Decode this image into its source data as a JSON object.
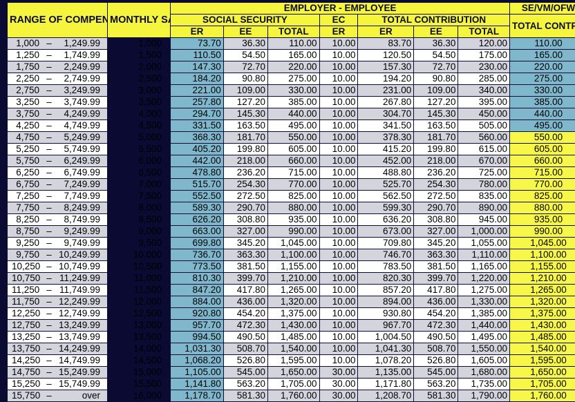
{
  "header": {
    "range": "RANGE OF COMPENSATION",
    "msc": "MONTHLY SALARY CREDIT*",
    "employer_employee": "EMPLOYER - EMPLOYEE",
    "social_security": "SOCIAL SECURITY",
    "ec": "EC",
    "total_contribution": "TOTAL CONTRIBUTION",
    "se": "SE/VM/OFW",
    "se_total": "TOTAL CONTRIBUTION",
    "er": "ER",
    "ee": "EE",
    "total": "TOTAL"
  },
  "rows": [
    {
      "lo": "1,000",
      "dash": "–",
      "hi": "1,249.99",
      "msc": "1,000",
      "ss_er": "73.70",
      "ss_ee": "36.30",
      "ss_total": "110.00",
      "ec_er": "10.00",
      "tc_er": "83.70",
      "tc_ee": "36.30",
      "tc_total": "120.00",
      "se_total": "110.00"
    },
    {
      "lo": "1,250",
      "dash": "–",
      "hi": "1,749.99",
      "msc": "1,500",
      "ss_er": "110.50",
      "ss_ee": "54.50",
      "ss_total": "165.00",
      "ec_er": "10.00",
      "tc_er": "120.50",
      "tc_ee": "54.50",
      "tc_total": "175.00",
      "se_total": "165.00"
    },
    {
      "lo": "1,750",
      "dash": "–",
      "hi": "2,249.99",
      "msc": "2,000",
      "ss_er": "147.30",
      "ss_ee": "72.70",
      "ss_total": "220.00",
      "ec_er": "10.00",
      "tc_er": "157.30",
      "tc_ee": "72.70",
      "tc_total": "230.00",
      "se_total": "220.00"
    },
    {
      "lo": "2,250",
      "dash": "–",
      "hi": "2,749.99",
      "msc": "2,500",
      "ss_er": "184.20",
      "ss_ee": "90.80",
      "ss_total": "275.00",
      "ec_er": "10.00",
      "tc_er": "194.20",
      "tc_ee": "90.80",
      "tc_total": "285.00",
      "se_total": "275.00"
    },
    {
      "lo": "2,750",
      "dash": "–",
      "hi": "3,249.99",
      "msc": "3,000",
      "ss_er": "221.00",
      "ss_ee": "109.00",
      "ss_total": "330.00",
      "ec_er": "10.00",
      "tc_er": "231.00",
      "tc_ee": "109.00",
      "tc_total": "340.00",
      "se_total": "330.00"
    },
    {
      "lo": "3,250",
      "dash": "–",
      "hi": "3,749.99",
      "msc": "3,500",
      "ss_er": "257.80",
      "ss_ee": "127.20",
      "ss_total": "385.00",
      "ec_er": "10.00",
      "tc_er": "267.80",
      "tc_ee": "127.20",
      "tc_total": "395.00",
      "se_total": "385.00"
    },
    {
      "lo": "3,750",
      "dash": "–",
      "hi": "4,249.99",
      "msc": "4,000",
      "ss_er": "294.70",
      "ss_ee": "145.30",
      "ss_total": "440.00",
      "ec_er": "10.00",
      "tc_er": "304.70",
      "tc_ee": "145.30",
      "tc_total": "450.00",
      "se_total": "440.00"
    },
    {
      "lo": "4,250",
      "dash": "–",
      "hi": "4,749.99",
      "msc": "4,500",
      "ss_er": "331.50",
      "ss_ee": "163.50",
      "ss_total": "495.00",
      "ec_er": "10.00",
      "tc_er": "341.50",
      "tc_ee": "163.50",
      "tc_total": "505.00",
      "se_total": "495.00"
    },
    {
      "lo": "4,750",
      "dash": "–",
      "hi": "5,249.99",
      "msc": "5,000",
      "ss_er": "368.30",
      "ss_ee": "181.70",
      "ss_total": "550.00",
      "ec_er": "10.00",
      "tc_er": "378.30",
      "tc_ee": "181.70",
      "tc_total": "560.00",
      "se_total": "550.00"
    },
    {
      "lo": "5,250",
      "dash": "–",
      "hi": "5,749.99",
      "msc": "5,500",
      "ss_er": "405.20",
      "ss_ee": "199.80",
      "ss_total": "605.00",
      "ec_er": "10.00",
      "tc_er": "415.20",
      "tc_ee": "199.80",
      "tc_total": "615.00",
      "se_total": "605.00"
    },
    {
      "lo": "5,750",
      "dash": "–",
      "hi": "6,249.99",
      "msc": "6,000",
      "ss_er": "442.00",
      "ss_ee": "218.00",
      "ss_total": "660.00",
      "ec_er": "10.00",
      "tc_er": "452.00",
      "tc_ee": "218.00",
      "tc_total": "670.00",
      "se_total": "660.00"
    },
    {
      "lo": "6,250",
      "dash": "–",
      "hi": "6,749.99",
      "msc": "6,500",
      "ss_er": "478.80",
      "ss_ee": "236.20",
      "ss_total": "715.00",
      "ec_er": "10.00",
      "tc_er": "488.80",
      "tc_ee": "236.20",
      "tc_total": "725.00",
      "se_total": "715.00"
    },
    {
      "lo": "6,750",
      "dash": "–",
      "hi": "7,249.99",
      "msc": "7,000",
      "ss_er": "515.70",
      "ss_ee": "254.30",
      "ss_total": "770.00",
      "ec_er": "10.00",
      "tc_er": "525.70",
      "tc_ee": "254.30",
      "tc_total": "780.00",
      "se_total": "770.00"
    },
    {
      "lo": "7,250",
      "dash": "–",
      "hi": "7,749.99",
      "msc": "7,500",
      "ss_er": "552.50",
      "ss_ee": "272.50",
      "ss_total": "825.00",
      "ec_er": "10.00",
      "tc_er": "562.50",
      "tc_ee": "272.50",
      "tc_total": "835.00",
      "se_total": "825.00"
    },
    {
      "lo": "7,750",
      "dash": "–",
      "hi": "8,249.99",
      "msc": "8,000",
      "ss_er": "589.30",
      "ss_ee": "290.70",
      "ss_total": "880.00",
      "ec_er": "10.00",
      "tc_er": "599.30",
      "tc_ee": "290.70",
      "tc_total": "890.00",
      "se_total": "880.00"
    },
    {
      "lo": "8,250",
      "dash": "–",
      "hi": "8,749.99",
      "msc": "8,500",
      "ss_er": "626.20",
      "ss_ee": "308.80",
      "ss_total": "935.00",
      "ec_er": "10.00",
      "tc_er": "636.20",
      "tc_ee": "308.80",
      "tc_total": "945.00",
      "se_total": "935.00"
    },
    {
      "lo": "8,750",
      "dash": "–",
      "hi": "9,249.99",
      "msc": "9,000",
      "ss_er": "663.00",
      "ss_ee": "327.00",
      "ss_total": "990.00",
      "ec_er": "10.00",
      "tc_er": "673.00",
      "tc_ee": "327.00",
      "tc_total": "1,000.00",
      "se_total": "990.00"
    },
    {
      "lo": "9,250",
      "dash": "–",
      "hi": "9,749.99",
      "msc": "9,500",
      "ss_er": "699.80",
      "ss_ee": "345.20",
      "ss_total": "1,045.00",
      "ec_er": "10.00",
      "tc_er": "709.80",
      "tc_ee": "345.20",
      "tc_total": "1,055.00",
      "se_total": "1,045.00"
    },
    {
      "lo": "9,750",
      "dash": "–",
      "hi": "10,249.99",
      "msc": "10,000",
      "ss_er": "736.70",
      "ss_ee": "363.30",
      "ss_total": "1,100.00",
      "ec_er": "10.00",
      "tc_er": "746.70",
      "tc_ee": "363.30",
      "tc_total": "1,110.00",
      "se_total": "1,100.00"
    },
    {
      "lo": "10,250",
      "dash": "–",
      "hi": "10,749.99",
      "msc": "10,500",
      "ss_er": "773.50",
      "ss_ee": "381.50",
      "ss_total": "1,155.00",
      "ec_er": "10.00",
      "tc_er": "783.50",
      "tc_ee": "381.50",
      "tc_total": "1,165.00",
      "se_total": "1,155.00"
    },
    {
      "lo": "10,750",
      "dash": "–",
      "hi": "11,249.99",
      "msc": "11,000",
      "ss_er": "810.30",
      "ss_ee": "399.70",
      "ss_total": "1,210.00",
      "ec_er": "10.00",
      "tc_er": "820.30",
      "tc_ee": "399.70",
      "tc_total": "1,220.00",
      "se_total": "1,210.00"
    },
    {
      "lo": "11,250",
      "dash": "–",
      "hi": "11,749.99",
      "msc": "11,500",
      "ss_er": "847.20",
      "ss_ee": "417.80",
      "ss_total": "1,265.00",
      "ec_er": "10.00",
      "tc_er": "857.20",
      "tc_ee": "417.80",
      "tc_total": "1,275.00",
      "se_total": "1,265.00"
    },
    {
      "lo": "11,750",
      "dash": "–",
      "hi": "12,249.99",
      "msc": "12,000",
      "ss_er": "884.00",
      "ss_ee": "436.00",
      "ss_total": "1,320.00",
      "ec_er": "10.00",
      "tc_er": "894.00",
      "tc_ee": "436.00",
      "tc_total": "1,330.00",
      "se_total": "1,320.00"
    },
    {
      "lo": "12,250",
      "dash": "–",
      "hi": "12,749.99",
      "msc": "12,500",
      "ss_er": "920.80",
      "ss_ee": "454.20",
      "ss_total": "1,375.00",
      "ec_er": "10.00",
      "tc_er": "930.80",
      "tc_ee": "454.20",
      "tc_total": "1,385.00",
      "se_total": "1,375.00"
    },
    {
      "lo": "12,750",
      "dash": "–",
      "hi": "13,249.99",
      "msc": "13,000",
      "ss_er": "957.70",
      "ss_ee": "472.30",
      "ss_total": "1,430.00",
      "ec_er": "10.00",
      "tc_er": "967.70",
      "tc_ee": "472.30",
      "tc_total": "1,440.00",
      "se_total": "1,430.00"
    },
    {
      "lo": "13,250",
      "dash": "–",
      "hi": "13,749.99",
      "msc": "13,500",
      "ss_er": "994.50",
      "ss_ee": "490.50",
      "ss_total": "1,485.00",
      "ec_er": "10.00",
      "tc_er": "1,004.50",
      "tc_ee": "490.50",
      "tc_total": "1,495.00",
      "se_total": "1,485.00"
    },
    {
      "lo": "13,750",
      "dash": "–",
      "hi": "14,249.99",
      "msc": "14,000",
      "ss_er": "1,031.30",
      "ss_ee": "508.70",
      "ss_total": "1,540.00",
      "ec_er": "10.00",
      "tc_er": "1,041.30",
      "tc_ee": "508.70",
      "tc_total": "1,550.00",
      "se_total": "1,540.00"
    },
    {
      "lo": "14,250",
      "dash": "–",
      "hi": "14,749.99",
      "msc": "14,500",
      "ss_er": "1,068.20",
      "ss_ee": "526.80",
      "ss_total": "1,595.00",
      "ec_er": "10.00",
      "tc_er": "1,078.20",
      "tc_ee": "526.80",
      "tc_total": "1,605.00",
      "se_total": "1,595.00"
    },
    {
      "lo": "14,750",
      "dash": "–",
      "hi": "15,249.99",
      "msc": "15,000",
      "ss_er": "1,105.00",
      "ss_ee": "545.00",
      "ss_total": "1,650.00",
      "ec_er": "30.00",
      "tc_er": "1,135.00",
      "tc_ee": "545.00",
      "tc_total": "1,680.00",
      "se_total": "1,650.00"
    },
    {
      "lo": "15,250",
      "dash": "–",
      "hi": "15,749.99",
      "msc": "15,500",
      "ss_er": "1,141.80",
      "ss_ee": "563.20",
      "ss_total": "1,705.00",
      "ec_er": "30.00",
      "tc_er": "1,171.80",
      "tc_ee": "563.20",
      "tc_total": "1,735.00",
      "se_total": "1,705.00"
    },
    {
      "lo": "15,750",
      "dash": "–",
      "hi": "over",
      "msc": "16,000",
      "ss_er": "1,178.70",
      "ss_ee": "581.30",
      "ss_total": "1,760.00",
      "ec_er": "30.00",
      "tc_er": "1,208.70",
      "tc_ee": "581.30",
      "tc_total": "1,790.00",
      "se_total": "1,760.00"
    }
  ],
  "colors": {
    "header_bg": "#f5f53d",
    "highlight_yellow": "#f7f74a",
    "highlight_blue": "#7fb8cc",
    "row_gray": "#d4d4dc",
    "row_white": "#ffffff",
    "border": "#0a0a33"
  }
}
